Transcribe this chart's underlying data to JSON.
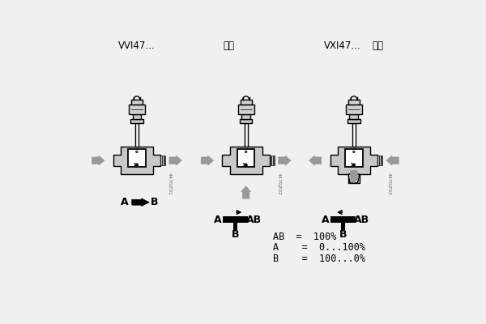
{
  "bg_color": "#f0f0f0",
  "label_vvi": "VVI47...",
  "label_heli": "合流",
  "label_vxi": "VXI47...",
  "label_fenliu": "分流",
  "black": "#000000",
  "dark_gray": "#333333",
  "white": "#ffffff",
  "gray_light": "#d0d0d0",
  "gray_mid": "#aaaaaa",
  "gray_body": "#c8c8c8",
  "arrow_gray": "#999999",
  "code1": "4470Z01",
  "code2": "4470Z02",
  "code3": "4470Z03",
  "eq_ab": "AB  =  100%",
  "eq_a": "A    =  0...100%",
  "eq_b": "B    =  100...0%",
  "lw": 1.0
}
